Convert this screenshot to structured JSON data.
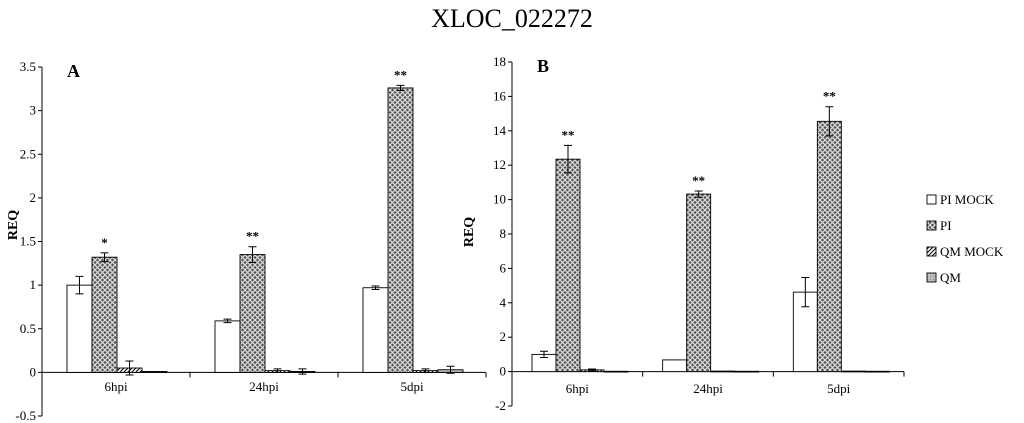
{
  "title": "XLOC_022272",
  "colors": {
    "bar_white": "#ffffff",
    "bar_stroke": "#000000"
  },
  "legend": [
    {
      "label": "PI MOCK",
      "pattern": "white"
    },
    {
      "label": "PI",
      "pattern": "crosshatch"
    },
    {
      "label": "QM MOCK",
      "pattern": "diagonal"
    },
    {
      "label": "QM",
      "pattern": "grey"
    }
  ],
  "chart_data": [
    {
      "type": "bar",
      "panel_label": "A",
      "ylabel": "REQ",
      "ylim": [
        -0.5,
        3.5
      ],
      "yticks": [
        "-0.5",
        "0",
        "0.5",
        "1",
        "1.5",
        "2",
        "2.5",
        "3",
        "3.5"
      ],
      "ytick_values": [
        -0.5,
        0,
        0.5,
        1,
        1.5,
        2,
        2.5,
        3,
        3.5
      ],
      "categories": [
        "6hpi",
        "24hpi",
        "5dpi"
      ],
      "series": [
        {
          "name": "PI MOCK",
          "values": [
            1.0,
            0.59,
            0.97
          ],
          "errors": [
            0.1,
            0.02,
            0.02
          ]
        },
        {
          "name": "PI",
          "values": [
            1.32,
            1.35,
            3.26
          ],
          "errors": [
            0.05,
            0.09,
            0.03
          ]
        },
        {
          "name": "QM MOCK",
          "values": [
            0.05,
            0.02,
            0.02
          ],
          "errors": [
            0.08,
            0.02,
            0.02
          ]
        },
        {
          "name": "QM",
          "values": [
            0.01,
            0.01,
            0.03
          ],
          "errors": [
            0.0,
            0.03,
            0.04
          ]
        }
      ],
      "significance": [
        "*",
        "**",
        "**"
      ]
    },
    {
      "type": "bar",
      "panel_label": "B",
      "ylabel": "REQ",
      "ylim": [
        -2,
        18
      ],
      "yticks": [
        "-2",
        "0",
        "2",
        "4",
        "6",
        "8",
        "10",
        "12",
        "14",
        "16",
        "18"
      ],
      "ytick_values": [
        -2,
        0,
        2,
        4,
        6,
        8,
        10,
        12,
        14,
        16,
        18
      ],
      "categories": [
        "6hpi",
        "24hpi",
        "5dpi"
      ],
      "series": [
        {
          "name": "PI MOCK",
          "values": [
            1.0,
            0.68,
            4.62
          ],
          "errors": [
            0.18,
            0.0,
            0.85
          ]
        },
        {
          "name": "PI",
          "values": [
            12.35,
            10.32,
            14.55
          ],
          "errors": [
            0.8,
            0.18,
            0.85
          ]
        },
        {
          "name": "QM MOCK",
          "values": [
            0.1,
            0.03,
            0.03
          ],
          "errors": [
            0.05,
            0.0,
            0.0
          ]
        },
        {
          "name": "QM",
          "values": [
            0.02,
            0.02,
            0.02
          ],
          "errors": [
            0.0,
            0.0,
            0.0
          ]
        }
      ],
      "significance": [
        "**",
        "**",
        "**"
      ]
    }
  ]
}
